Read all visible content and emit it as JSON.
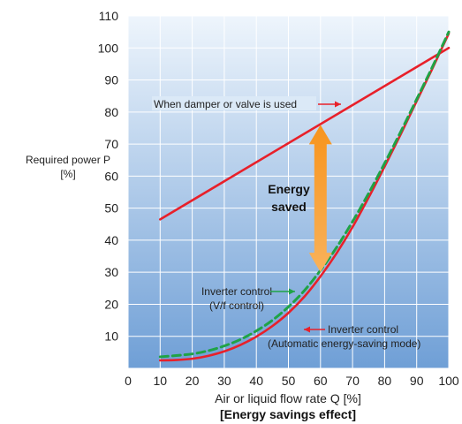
{
  "chart_data": {
    "type": "line",
    "ylabel_line1": "Required power P",
    "ylabel_line2": "[%]",
    "xlabel": "Air or liquid flow rate Q [%]",
    "caption": "[Energy savings effect]",
    "xlim": [
      0,
      100
    ],
    "ylim": [
      0,
      110
    ],
    "xticks": [
      0,
      10,
      20,
      30,
      40,
      50,
      60,
      70,
      80,
      90,
      100
    ],
    "yticks": [
      10,
      20,
      30,
      40,
      50,
      60,
      70,
      80,
      90,
      100,
      110
    ],
    "grid": true,
    "series": [
      {
        "name": "When damper or valve is used",
        "style": "solid",
        "color": "#e8202a",
        "x": [
          10,
          100
        ],
        "y": [
          46.5,
          100
        ]
      },
      {
        "name": "Inverter control (Automatic energy-saving mode)",
        "style": "solid",
        "color": "#e8202a",
        "x": [
          10,
          15,
          20,
          25,
          30,
          35,
          40,
          45,
          50,
          55,
          60,
          65,
          70,
          75,
          80,
          85,
          90,
          95,
          100
        ],
        "y": [
          2.5,
          2.6,
          3.0,
          3.9,
          5.3,
          7.3,
          9.9,
          13.2,
          17.3,
          22.4,
          28.7,
          35.9,
          44.1,
          53.3,
          63.0,
          73.0,
          83.4,
          93.8,
          104.5
        ]
      },
      {
        "name": "Inverter control (V/f control)",
        "style": "dashed",
        "color": "#1fa346",
        "x": [
          10,
          15,
          20,
          25,
          30,
          35,
          40,
          45,
          50,
          55,
          60,
          65,
          70,
          75,
          80,
          85,
          90,
          95,
          100
        ],
        "y": [
          3.6,
          4.0,
          4.5,
          5.5,
          7.0,
          9.0,
          11.7,
          15.0,
          19.2,
          24.3,
          30.6,
          37.7,
          45.8,
          54.6,
          64.0,
          73.8,
          84.0,
          94.3,
          105
        ]
      }
    ],
    "annotations": [
      {
        "id": "damper",
        "text": "When damper or valve is used"
      },
      {
        "id": "vf",
        "lines": [
          "Inverter control",
          "(V/f control)"
        ]
      },
      {
        "id": "auto",
        "lines": [
          "Inverter control",
          "(Automatic energy-saving mode)"
        ]
      },
      {
        "id": "saved",
        "lines": [
          "Energy",
          "saved"
        ],
        "arrow_from": 30,
        "arrow_to": 76,
        "arrow_x": 60,
        "arrow_color": "#f7941d"
      }
    ],
    "background_gradient": [
      "#eef5fc",
      "#6f9fd6"
    ]
  }
}
